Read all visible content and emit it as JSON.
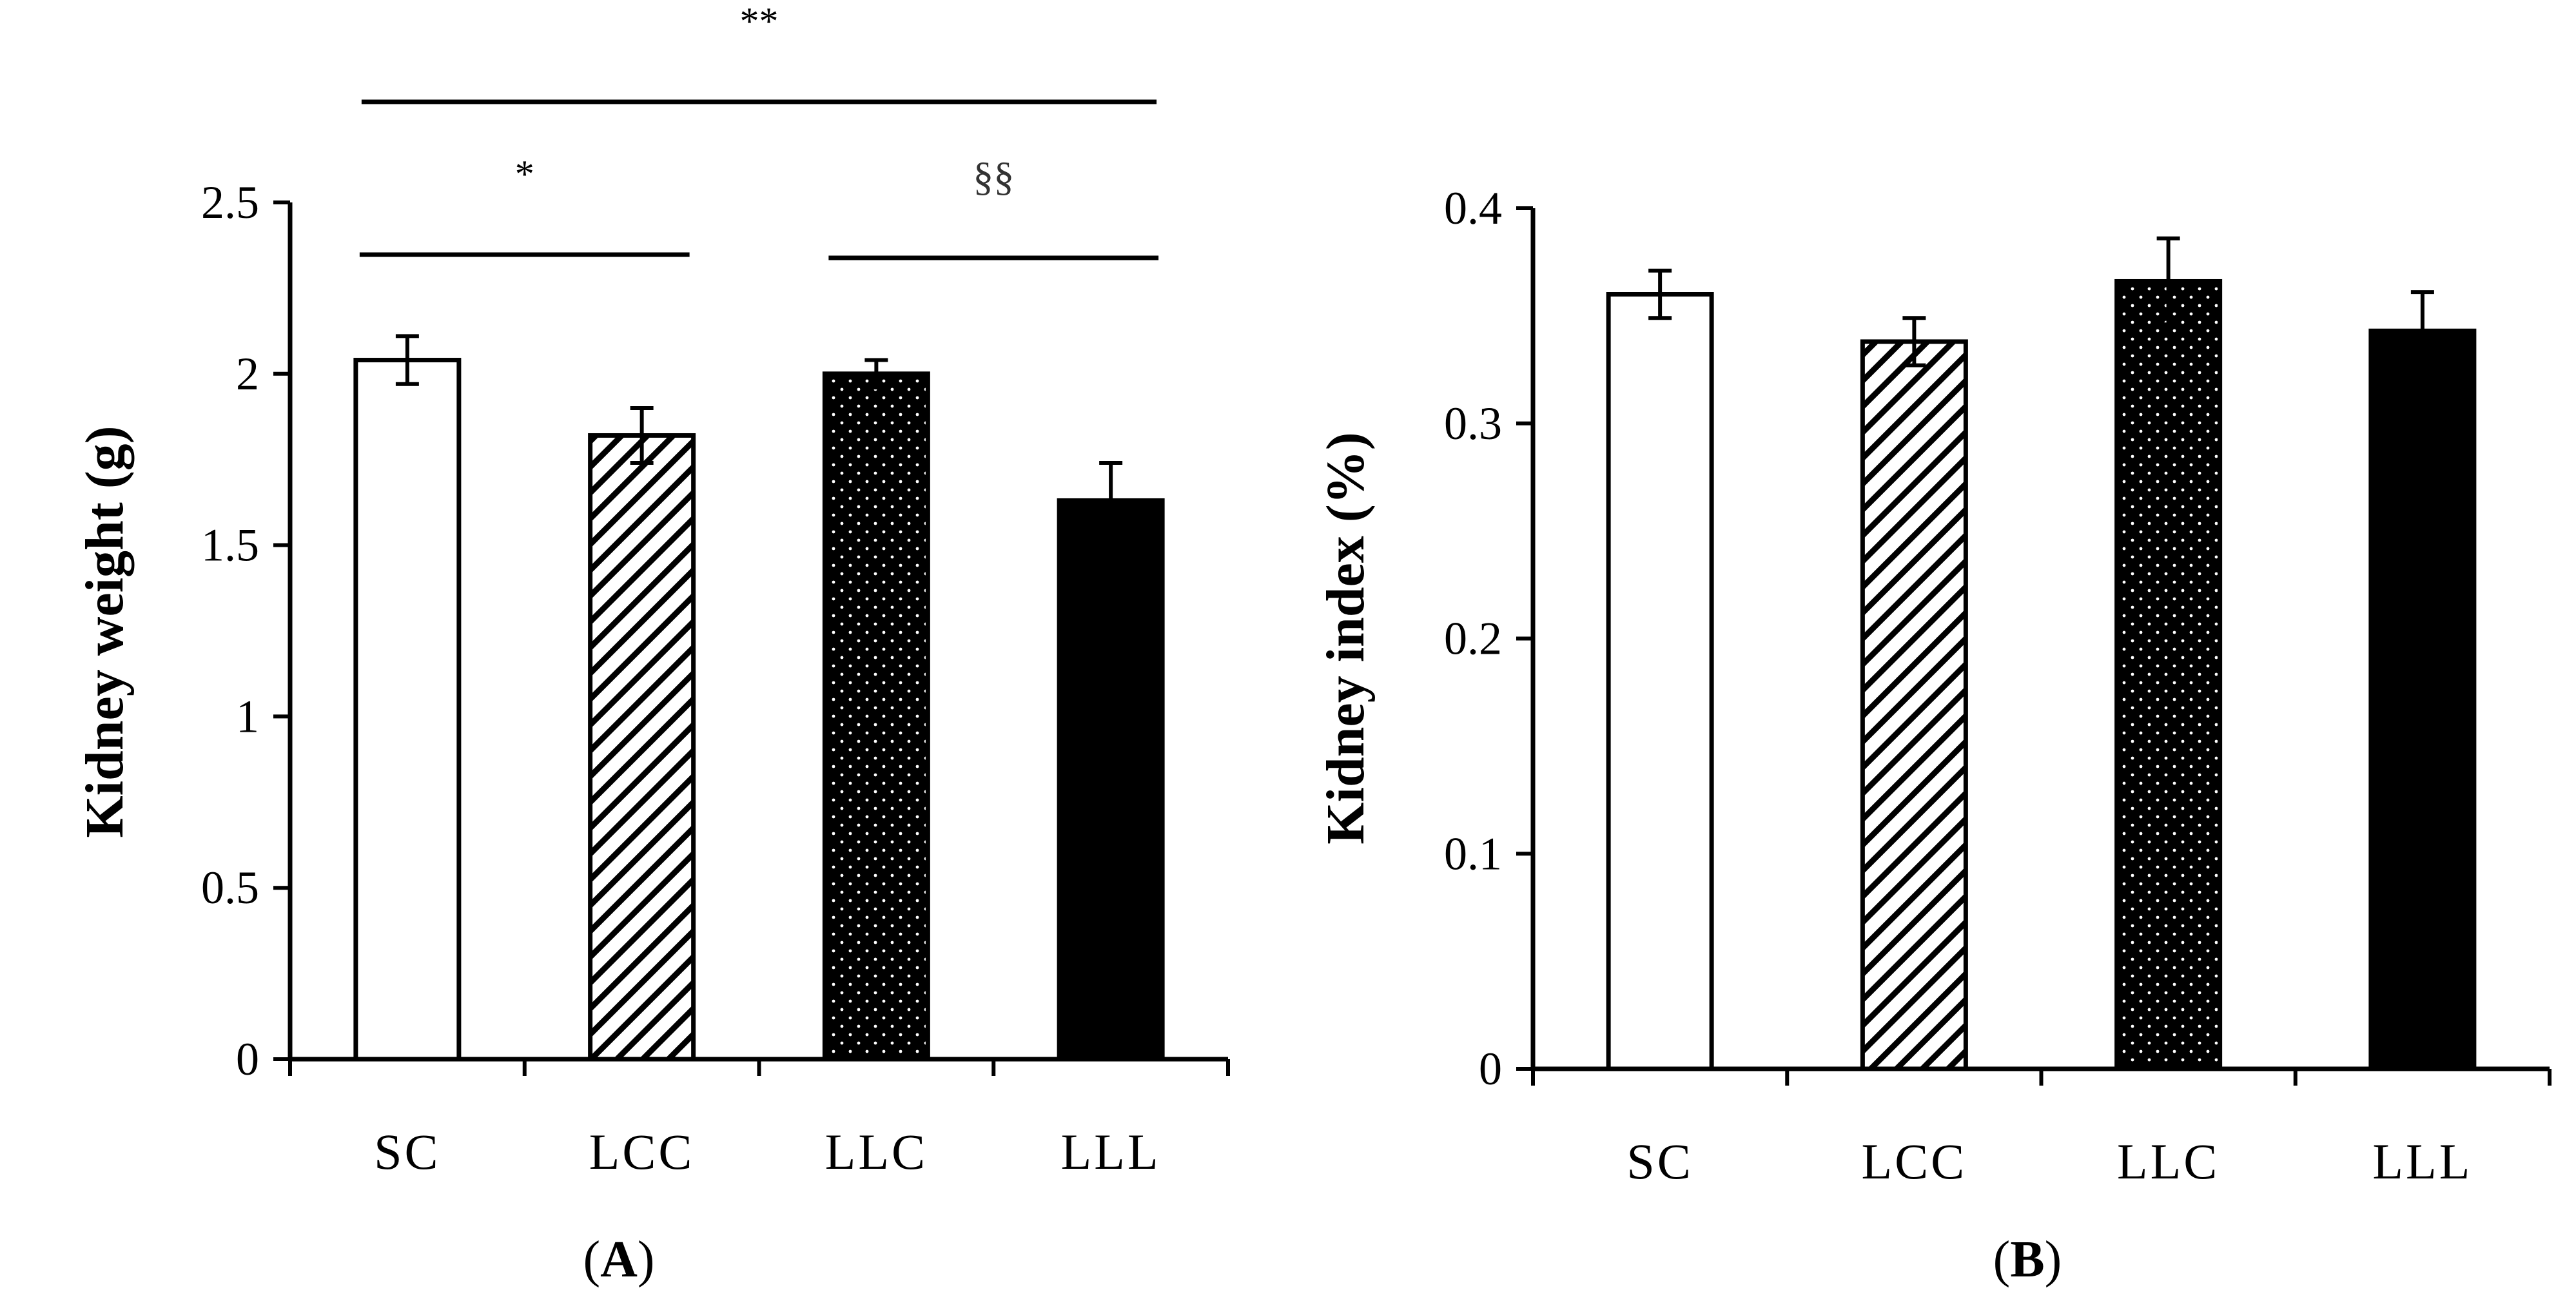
{
  "chart_data": [
    {
      "type": "bar",
      "panel_label": "A",
      "categories": [
        "SC",
        "LCC",
        "LLC",
        "LLL"
      ],
      "values": [
        2.04,
        1.82,
        2.0,
        1.63
      ],
      "errors": [
        0.07,
        0.08,
        0.04,
        0.11
      ],
      "patterns": [
        "white",
        "hatch",
        "dots",
        "black"
      ],
      "ylabel": "Kidney weight (g)",
      "ylim": [
        0,
        2.5
      ],
      "yticks": [
        "0",
        "0.5",
        "1",
        "1.5",
        "2",
        "2.5"
      ],
      "yticks_values": [
        0,
        0.5,
        1,
        1.5,
        2,
        2.5
      ],
      "significance": [
        {
          "from": "SC",
          "to": "LLL",
          "label": "**"
        },
        {
          "from": "SC",
          "to": "LCC",
          "label": "*"
        },
        {
          "from": "LLC",
          "to": "LLL",
          "label": "§§"
        }
      ]
    },
    {
      "type": "bar",
      "panel_label": "B",
      "categories": [
        "SC",
        "LCC",
        "LLC",
        "LLL"
      ],
      "values": [
        0.36,
        0.338,
        0.366,
        0.343
      ],
      "errors": [
        0.011,
        0.011,
        0.02,
        0.018
      ],
      "patterns": [
        "white",
        "hatch",
        "dots",
        "black"
      ],
      "ylabel": "Kidney index (%)",
      "ylim": [
        0,
        0.4
      ],
      "yticks": [
        "0",
        "0.1",
        "0.2",
        "0.3",
        "0.4"
      ],
      "yticks_values": [
        0,
        0.1,
        0.2,
        0.3,
        0.4
      ],
      "significance": []
    }
  ]
}
